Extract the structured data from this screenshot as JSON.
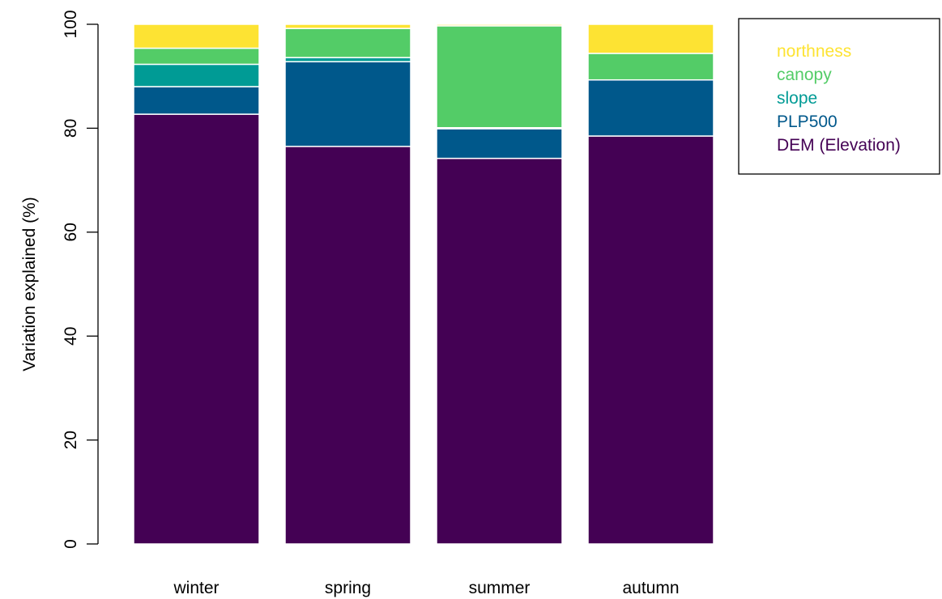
{
  "chart_data": {
    "type": "bar",
    "stacked": true,
    "ylabel": "Variation explained (%)",
    "xlabel": "",
    "ylim": [
      0,
      100
    ],
    "yticks": [
      0,
      20,
      40,
      60,
      80,
      100
    ],
    "categories": [
      "winter",
      "spring",
      "summer",
      "autumn"
    ],
    "series": [
      {
        "name": "DEM (Elevation)",
        "color": "#440154",
        "values": [
          82.7,
          76.5,
          74.2,
          78.5
        ]
      },
      {
        "name": "PLP500",
        "color": "#00588b",
        "values": [
          5.3,
          16.3,
          5.7,
          10.8
        ]
      },
      {
        "name": "slope",
        "color": "#009b95",
        "values": [
          4.3,
          0.8,
          0.2,
          0.0
        ]
      },
      {
        "name": "canopy",
        "color": "#53cc67",
        "values": [
          3.1,
          5.6,
          19.6,
          5.1
        ]
      },
      {
        "name": "northness",
        "color": "#fde333",
        "values": [
          4.6,
          0.8,
          0.3,
          5.6
        ]
      }
    ],
    "legend": {
      "position": "top-right",
      "order": [
        "northness",
        "canopy",
        "slope",
        "PLP500",
        "DEM (Elevation)"
      ]
    }
  }
}
